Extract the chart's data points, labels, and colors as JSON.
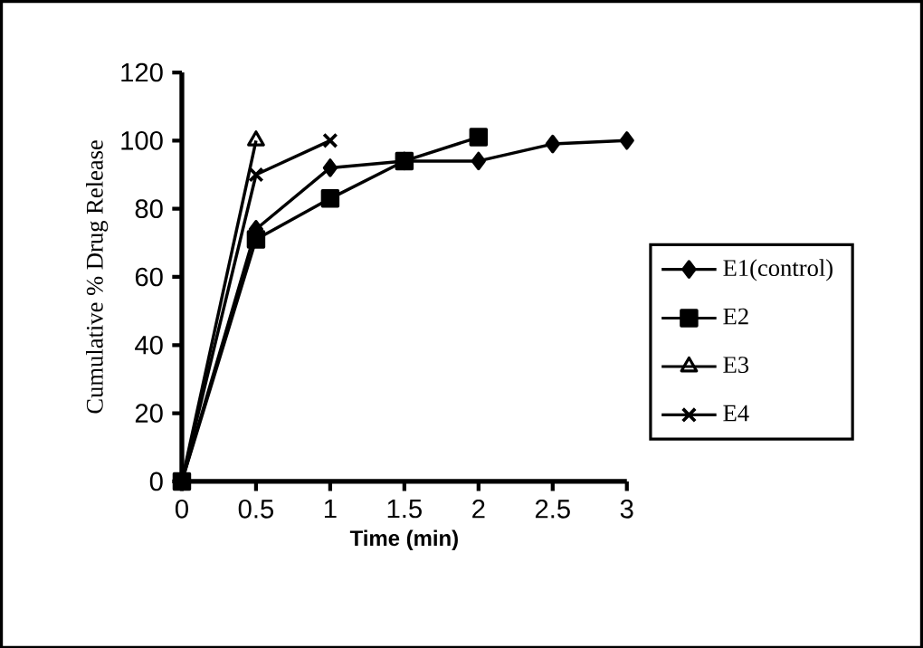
{
  "chart_data": {
    "type": "line",
    "xlabel": "Time (min)",
    "ylabel": "Cumulative % Drug Release",
    "xlim": [
      0,
      3
    ],
    "ylim": [
      0,
      120
    ],
    "xticks": [
      0,
      0.5,
      1,
      1.5,
      2,
      2.5,
      3
    ],
    "yticks": [
      0,
      20,
      40,
      60,
      80,
      100,
      120
    ],
    "legend": "right",
    "grid": false,
    "series": [
      {
        "name": "E1(control)",
        "color": "#000000",
        "marker": "diamond",
        "x": [
          0,
          0.5,
          1,
          1.5,
          2,
          2.5,
          3
        ],
        "values": [
          0,
          74,
          92,
          94,
          94,
          99,
          100
        ]
      },
      {
        "name": "E2",
        "color": "#000000",
        "marker": "square",
        "x": [
          0,
          0.5,
          1,
          1.5,
          2
        ],
        "values": [
          0,
          71,
          83,
          94,
          101
        ]
      },
      {
        "name": "E3",
        "color": "#000000",
        "marker": "triangle",
        "x": [
          0,
          0.5
        ],
        "values": [
          0,
          100
        ]
      },
      {
        "name": "E4",
        "color": "#000000",
        "marker": "cross",
        "x": [
          0,
          0.5,
          1
        ],
        "values": [
          0,
          90,
          100
        ]
      }
    ]
  }
}
